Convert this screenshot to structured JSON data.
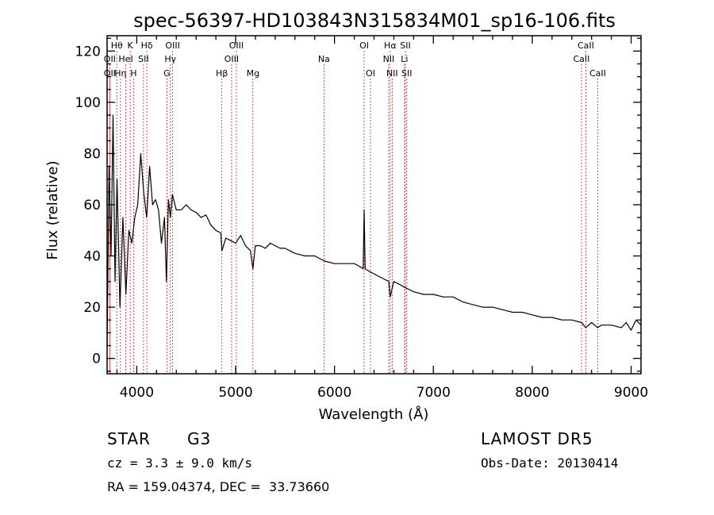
{
  "chart_data": {
    "type": "line",
    "title": "spec-56397-HD103843N315834M01_sp16-106.fits",
    "xlabel": "Wavelength (Å)",
    "ylabel": "Flux (relative)",
    "xlim": [
      3700,
      9100
    ],
    "ylim": [
      -6,
      126
    ],
    "x_ticks": [
      4000,
      5000,
      6000,
      7000,
      8000,
      9000
    ],
    "y_ticks": [
      0,
      20,
      40,
      60,
      80,
      100,
      120
    ],
    "grid": false,
    "spectrum": {
      "name": "",
      "x": [
        3700,
        3720,
        3740,
        3760,
        3780,
        3800,
        3830,
        3860,
        3890,
        3920,
        3950,
        3980,
        4010,
        4040,
        4070,
        4100,
        4130,
        4160,
        4190,
        4220,
        4250,
        4280,
        4300,
        4320,
        4340,
        4360,
        4400,
        4450,
        4500,
        4550,
        4600,
        4650,
        4700,
        4750,
        4800,
        4850,
        4861,
        4900,
        4950,
        5000,
        5050,
        5100,
        5150,
        5175,
        5200,
        5250,
        5300,
        5350,
        5400,
        5450,
        5500,
        5600,
        5700,
        5800,
        5900,
        6000,
        6100,
        6200,
        6250,
        6290,
        6300,
        6310,
        6350,
        6400,
        6450,
        6500,
        6550,
        6563,
        6600,
        6650,
        6700,
        6750,
        6800,
        6900,
        7000,
        7100,
        7200,
        7300,
        7400,
        7500,
        7600,
        7700,
        7800,
        7900,
        8000,
        8100,
        8200,
        8300,
        8400,
        8500,
        8540,
        8600,
        8662,
        8700,
        8800,
        8900,
        8950,
        9000,
        9050,
        9100
      ],
      "y": [
        5,
        75,
        40,
        95,
        30,
        70,
        20,
        55,
        25,
        50,
        45,
        55,
        60,
        80,
        65,
        55,
        75,
        60,
        62,
        58,
        45,
        55,
        30,
        62,
        55,
        64,
        58,
        58,
        60,
        58,
        57,
        55,
        56,
        52,
        50,
        49,
        42,
        47,
        46,
        45,
        48,
        44,
        42,
        35,
        44,
        44,
        43,
        45,
        44,
        43,
        43,
        41,
        40,
        40,
        38,
        37,
        37,
        37,
        36,
        35,
        58,
        35,
        34,
        33,
        32,
        31,
        30,
        24,
        30,
        29,
        28,
        27,
        26,
        25,
        25,
        24,
        24,
        22,
        21,
        20,
        20,
        19,
        18,
        18,
        17,
        16,
        16,
        15,
        15,
        14,
        12,
        14,
        12,
        13,
        13,
        12,
        14,
        11,
        15,
        13
      ]
    },
    "lines": [
      {
        "label": "Hθ",
        "wave": 3798,
        "row": 0
      },
      {
        "label": "K",
        "wave": 3934,
        "row": 0
      },
      {
        "label": "Hδ",
        "wave": 4102,
        "row": 0
      },
      {
        "label": "OIII",
        "wave": 4363,
        "row": 0
      },
      {
        "label": "OIII",
        "wave": 5007,
        "row": 0
      },
      {
        "label": "OI",
        "wave": 6300,
        "row": 0
      },
      {
        "label": "Hα",
        "wave": 6563,
        "row": 0
      },
      {
        "label": "SII",
        "wave": 6717,
        "row": 0
      },
      {
        "label": "CaII",
        "wave": 8542,
        "row": 0
      },
      {
        "label": "OII",
        "wave": 3727,
        "row": 1
      },
      {
        "label": "HeI",
        "wave": 3889,
        "row": 1
      },
      {
        "label": "SII",
        "wave": 4068,
        "row": 1
      },
      {
        "label": "Hγ",
        "wave": 4340,
        "row": 1
      },
      {
        "label": "OIII",
        "wave": 4959,
        "row": 1
      },
      {
        "label": "Na",
        "wave": 5893,
        "row": 1
      },
      {
        "label": "NII",
        "wave": 6548,
        "row": 1
      },
      {
        "label": "Li",
        "wave": 6708,
        "row": 1
      },
      {
        "label": "CaII",
        "wave": 8498,
        "row": 1
      },
      {
        "label": "OII",
        "wave": 3727,
        "row": 2
      },
      {
        "label": "Hη",
        "wave": 3835,
        "row": 2
      },
      {
        "label": "H",
        "wave": 3968,
        "row": 2
      },
      {
        "label": "G",
        "wave": 4305,
        "row": 2
      },
      {
        "label": "Hβ",
        "wave": 4861,
        "row": 2
      },
      {
        "label": "Mg",
        "wave": 5175,
        "row": 2
      },
      {
        "label": "OI",
        "wave": 6364,
        "row": 2
      },
      {
        "label": "NII",
        "wave": 6583,
        "row": 2
      },
      {
        "label": "SII",
        "wave": 6731,
        "row": 2
      },
      {
        "label": "CaII",
        "wave": 8662,
        "row": 2
      }
    ]
  },
  "info": {
    "object_class": "STAR",
    "subclass": "G3",
    "survey": "LAMOST DR5",
    "cz": "cz = 3.3 ± 9.0 km/s",
    "obs_date": "Obs-Date: 20130414",
    "coords": "RA = 159.04374, DEC =  33.73660"
  },
  "colors": {
    "spectrum": "#000000",
    "line_markers": "#cc2222",
    "axes": "#000000",
    "background": "#ffffff"
  }
}
